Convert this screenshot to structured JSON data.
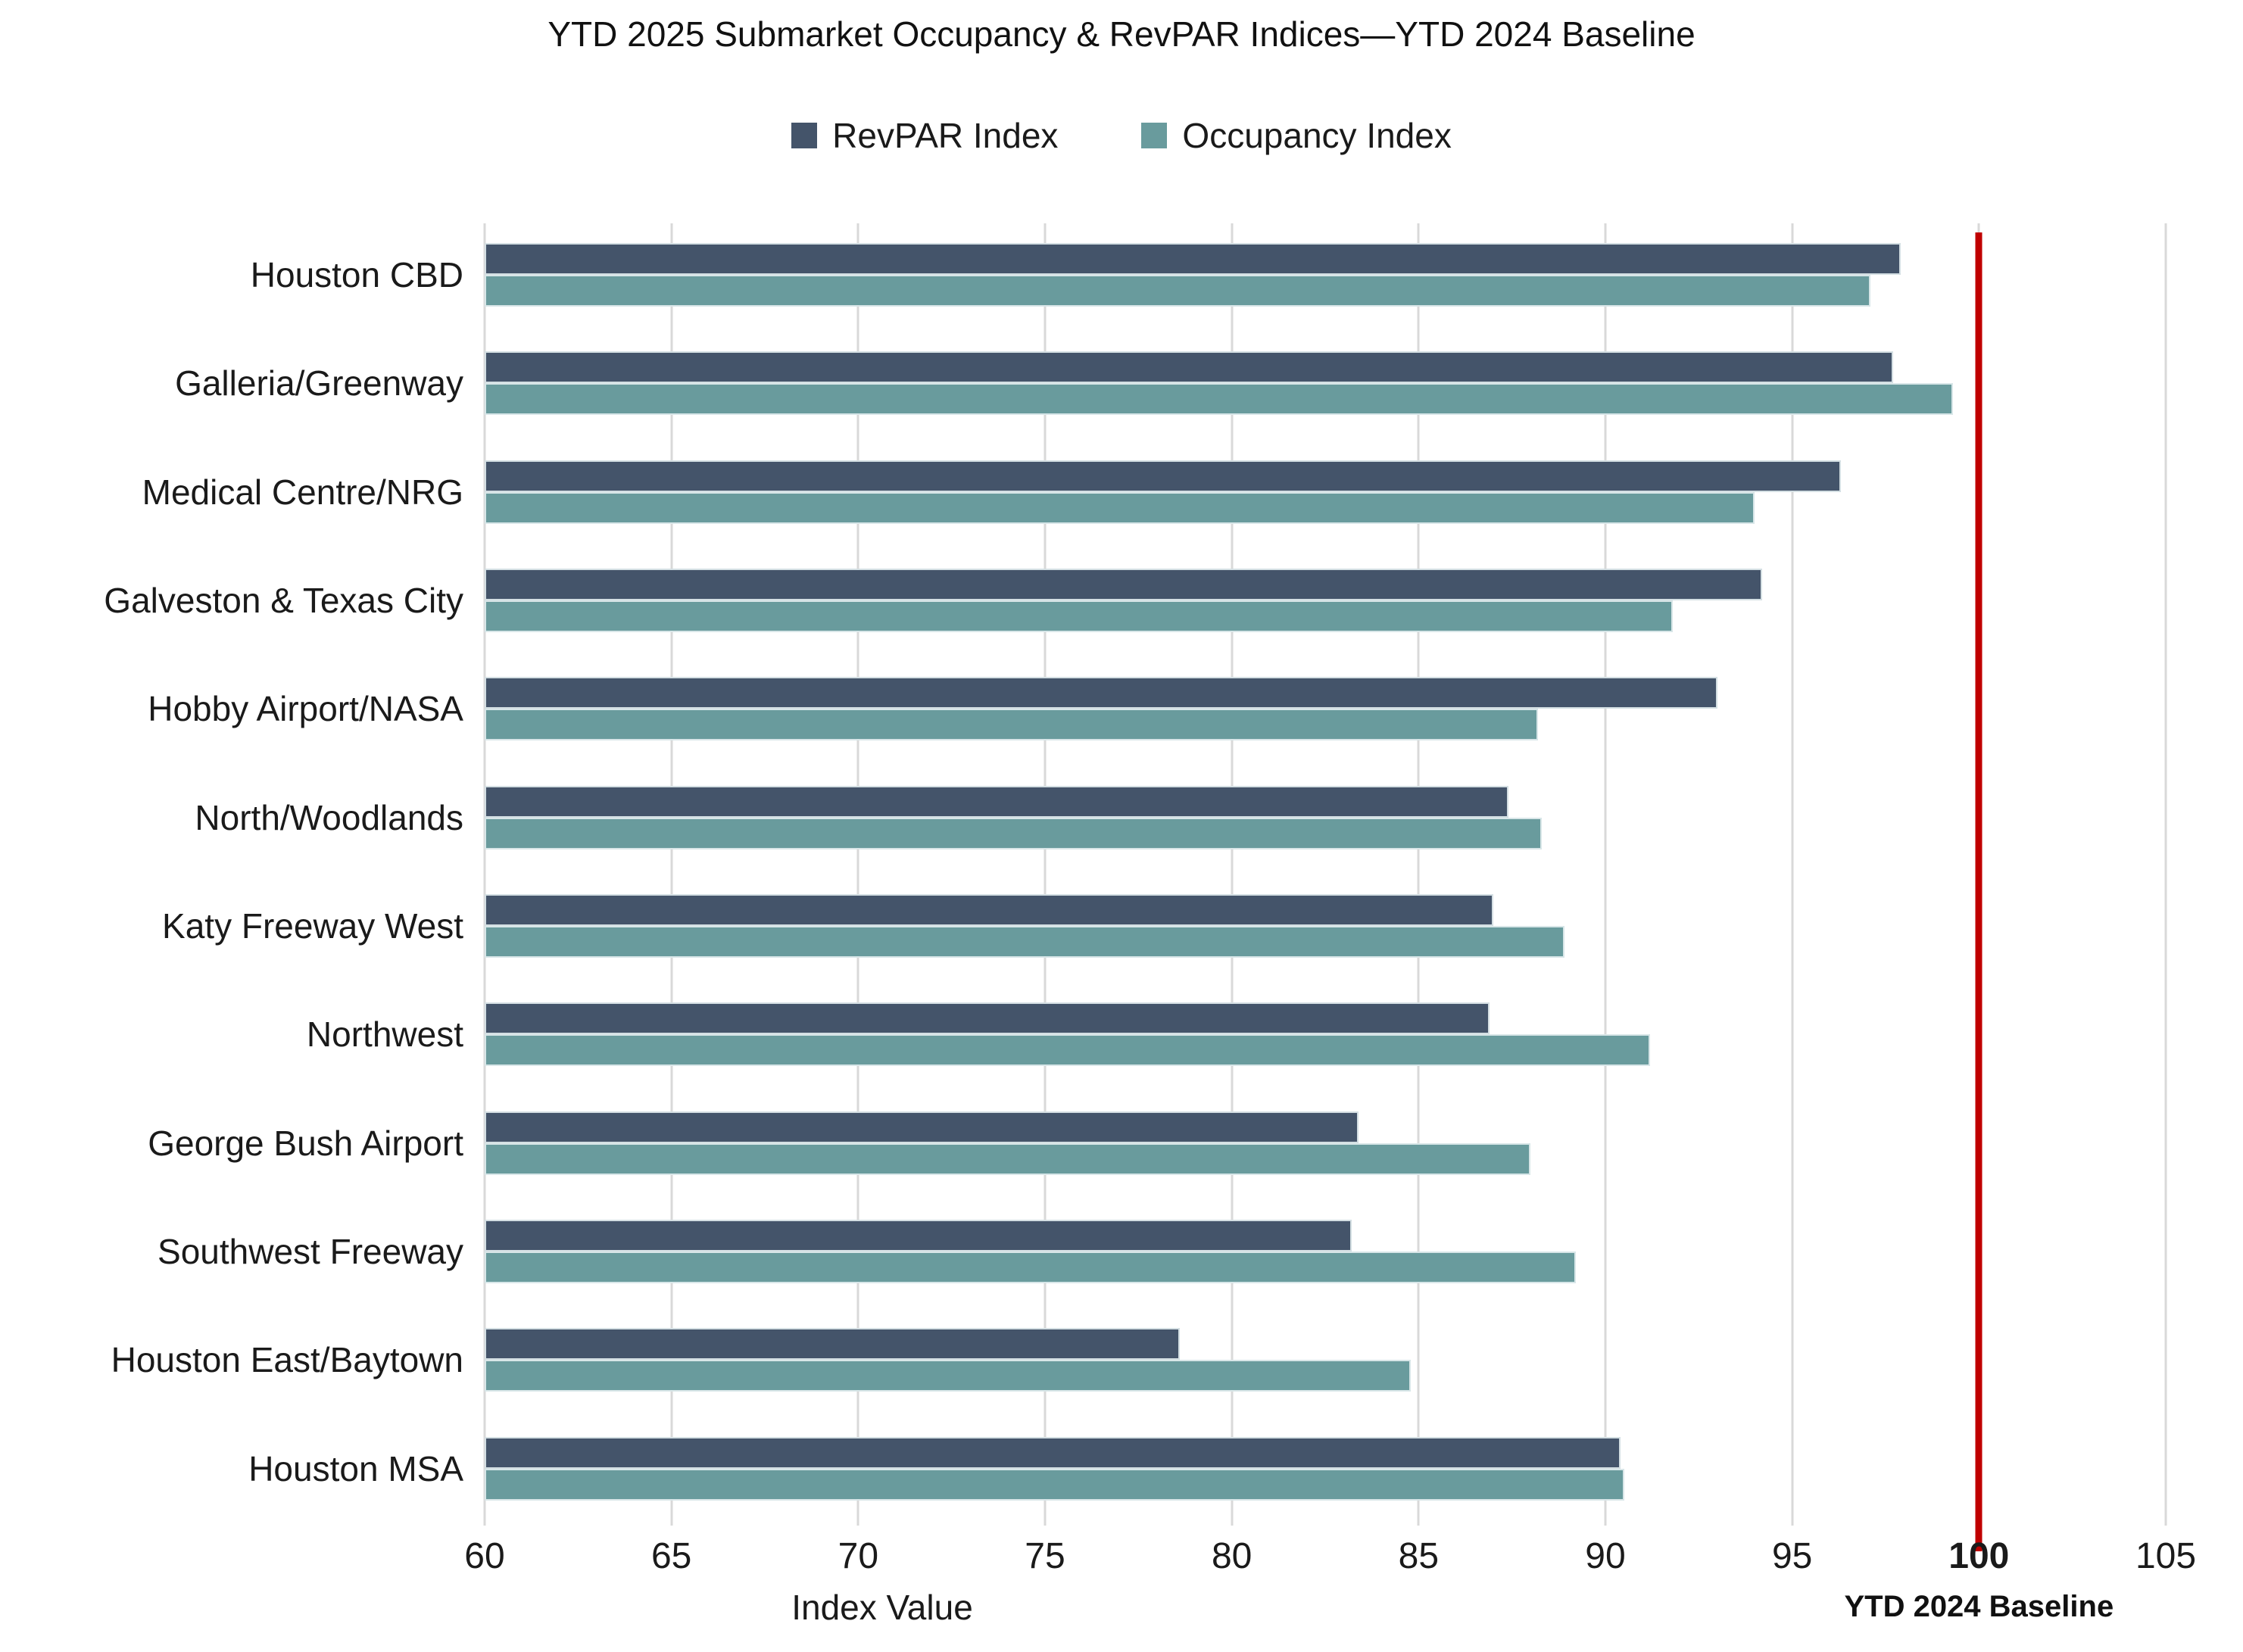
{
  "chart_data": {
    "type": "bar",
    "orientation": "horizontal",
    "title": "YTD 2025 Submarket Occupancy & RevPAR Indices—YTD 2024 Baseline",
    "categories": [
      "Houston CBD",
      "Galleria/Greenway",
      "Medical Centre/NRG",
      "Galveston & Texas City",
      "Hobby Airport/NASA",
      "North/Woodlands",
      "Katy Freeway West",
      "Northwest",
      "George Bush Airport",
      "Southwest Freeway",
      "Houston East/Baytown",
      "Houston MSA"
    ],
    "series": [
      {
        "name": "RevPAR Index",
        "color": "#44546A",
        "values": [
          97.9,
          97.7,
          96.3,
          94.2,
          93.0,
          87.4,
          87.0,
          86.9,
          83.4,
          83.2,
          78.6,
          90.4
        ]
      },
      {
        "name": "Occupancy Index",
        "color": "#699B9D",
        "values": [
          97.1,
          99.3,
          94.0,
          91.8,
          88.2,
          88.3,
          88.9,
          91.2,
          88.0,
          89.2,
          84.8,
          90.5
        ]
      }
    ],
    "xlabel": "Index Value",
    "xlim": [
      60,
      105
    ],
    "xticks": [
      60,
      65,
      70,
      75,
      80,
      85,
      90,
      95,
      100,
      105
    ],
    "baseline": {
      "value": 100,
      "label": "YTD 2024 Baseline",
      "color": "#C00000"
    },
    "gridlines": true,
    "gridline_color": "#d9d9d9",
    "legend_position": "top"
  }
}
